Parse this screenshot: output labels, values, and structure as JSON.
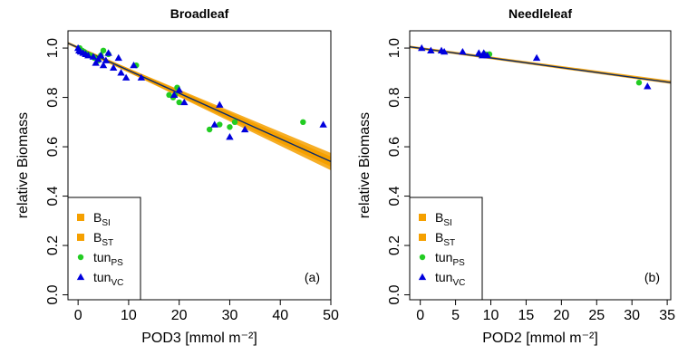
{
  "figure": {
    "ylabel_main": "relative Biomass"
  },
  "chart_data": [
    {
      "type": "scatter",
      "title": "Broadleaf",
      "panel_label": "(a)",
      "xlabel": "POD3 [mmol m⁻²]",
      "ylabel": "relative Biomass",
      "xlim": [
        -2,
        50
      ],
      "ylim": [
        -0.02,
        1.07
      ],
      "xticks": [
        0,
        10,
        20,
        30,
        40,
        50
      ],
      "yticks": [
        0.0,
        0.2,
        0.4,
        0.6,
        0.8,
        1.0
      ],
      "ytick_labels": [
        "0.0",
        "0.2",
        "0.4",
        "0.6",
        "0.8",
        "1.0"
      ],
      "grid": false,
      "legend_position": "bottom-left",
      "series": [
        {
          "name": "B",
          "subscript": "SI",
          "kind": "band",
          "color": "#f5a000",
          "x": [
            -2,
            50
          ],
          "y_low": [
            1.02,
            0.505
          ],
          "y_high": [
            1.02,
            0.575
          ]
        },
        {
          "name": "B",
          "subscript": "ST",
          "kind": "band",
          "color": "#f5a000",
          "x": [
            -2,
            50
          ],
          "y_low": [
            1.015,
            0.52
          ],
          "y_high": [
            1.025,
            0.56
          ]
        },
        {
          "name": "tun",
          "subscript": "PS",
          "kind": "points",
          "color": "#22cc22",
          "x": [
            0.3,
            0.8,
            1.2,
            1.8,
            2.5,
            3.2,
            4.0,
            4.5,
            5.0,
            6.0,
            11.5,
            18.0,
            18.8,
            19.2,
            19.6,
            20.0,
            26.0,
            28.0,
            30.0,
            31.0,
            44.5
          ],
          "y": [
            1.0,
            0.99,
            0.985,
            0.975,
            0.97,
            0.96,
            0.95,
            0.97,
            0.99,
            0.975,
            0.93,
            0.81,
            0.8,
            0.81,
            0.84,
            0.78,
            0.67,
            0.69,
            0.68,
            0.7,
            0.7
          ]
        },
        {
          "name": "tun",
          "subscript": "VC",
          "kind": "points",
          "color": "#0000dd",
          "x": [
            0.0,
            0.2,
            0.5,
            1.0,
            1.5,
            2.0,
            3.0,
            3.5,
            4.0,
            4.5,
            5.0,
            5.5,
            6.0,
            7.0,
            8.0,
            8.5,
            9.5,
            11.0,
            12.5,
            19.0,
            20.0,
            21.0,
            27.0,
            28.0,
            30.0,
            33.0,
            48.5
          ],
          "y": [
            1.0,
            0.99,
            0.985,
            0.98,
            0.975,
            0.97,
            0.965,
            0.94,
            0.955,
            0.97,
            0.93,
            0.95,
            0.98,
            0.92,
            0.96,
            0.9,
            0.88,
            0.93,
            0.88,
            0.81,
            0.83,
            0.78,
            0.69,
            0.77,
            0.64,
            0.67,
            0.69
          ]
        }
      ],
      "fit_line": {
        "color": "#0a2a6a",
        "x": [
          -2,
          50
        ],
        "y": [
          1.02,
          0.54
        ]
      }
    },
    {
      "type": "scatter",
      "title": "Needleleaf",
      "panel_label": "(b)",
      "xlabel": "POD2 [mmol m⁻²]",
      "ylabel": "relative Biomass",
      "xlim": [
        -1.5,
        35.5
      ],
      "ylim": [
        -0.02,
        1.07
      ],
      "xticks": [
        0,
        5,
        10,
        15,
        20,
        25,
        30,
        35
      ],
      "yticks": [
        0.0,
        0.2,
        0.4,
        0.6,
        0.8,
        1.0
      ],
      "ytick_labels": [
        "0.0",
        "0.2",
        "0.4",
        "0.6",
        "0.8",
        "1.0"
      ],
      "grid": false,
      "legend_position": "bottom-left",
      "series": [
        {
          "name": "B",
          "subscript": "SI",
          "kind": "band",
          "color": "#f5a000",
          "x": [
            -1.5,
            35.5
          ],
          "y_low": [
            1.0,
            0.855
          ],
          "y_high": [
            1.01,
            0.868
          ]
        },
        {
          "name": "B",
          "subscript": "ST",
          "kind": "band",
          "color": "#f5a000",
          "x": [
            -1.5,
            35.5
          ],
          "y_low": [
            1.002,
            0.858
          ],
          "y_high": [
            1.008,
            0.865
          ]
        },
        {
          "name": "tun",
          "subscript": "PS",
          "kind": "points",
          "color": "#22cc22",
          "x": [
            9.2,
            9.8,
            31.0
          ],
          "y": [
            0.975,
            0.975,
            0.86
          ]
        },
        {
          "name": "tun",
          "subscript": "VC",
          "kind": "points",
          "color": "#0000dd",
          "x": [
            0.2,
            1.5,
            3.0,
            3.4,
            6.0,
            8.3,
            8.8,
            9.0,
            9.5,
            16.5,
            32.2
          ],
          "y": [
            1.0,
            0.99,
            0.99,
            0.985,
            0.985,
            0.98,
            0.97,
            0.98,
            0.97,
            0.96,
            0.845
          ]
        }
      ],
      "fit_line": {
        "color": "#0a2a6a",
        "x": [
          -1.5,
          35.5
        ],
        "y": [
          1.005,
          0.86
        ]
      }
    }
  ]
}
